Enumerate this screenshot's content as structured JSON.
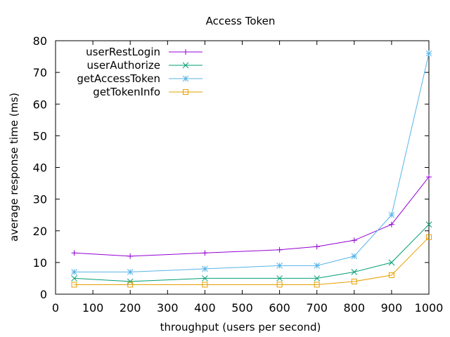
{
  "chart_data": {
    "type": "line",
    "title": "Access Token",
    "xlabel": "throughput (users per second)",
    "ylabel": "average response time (ms)",
    "xlim": [
      0,
      1000
    ],
    "ylim": [
      0,
      80
    ],
    "xticks": [
      0,
      100,
      200,
      300,
      400,
      500,
      600,
      700,
      800,
      900,
      1000
    ],
    "yticks": [
      0,
      10,
      20,
      30,
      40,
      50,
      60,
      70,
      80
    ],
    "x": [
      50,
      200,
      400,
      600,
      700,
      800,
      900,
      1000
    ],
    "legend_position": "top-left",
    "grid": false,
    "series": [
      {
        "name": "userRestLogin",
        "color": "#9400d3",
        "marker": "plus",
        "values": [
          13,
          12,
          13,
          14,
          15,
          17,
          22,
          37
        ]
      },
      {
        "name": "userAuthorize",
        "color": "#009e73",
        "marker": "cross",
        "values": [
          5,
          4,
          5,
          5,
          5,
          7,
          10,
          22
        ]
      },
      {
        "name": "getAccessToken",
        "color": "#56b4e9",
        "marker": "star",
        "values": [
          7,
          7,
          8,
          9,
          9,
          12,
          25,
          76
        ]
      },
      {
        "name": "getTokenInfo",
        "color": "#e69f00",
        "marker": "square",
        "values": [
          3,
          3,
          3,
          3,
          3,
          4,
          6,
          18
        ]
      }
    ]
  }
}
